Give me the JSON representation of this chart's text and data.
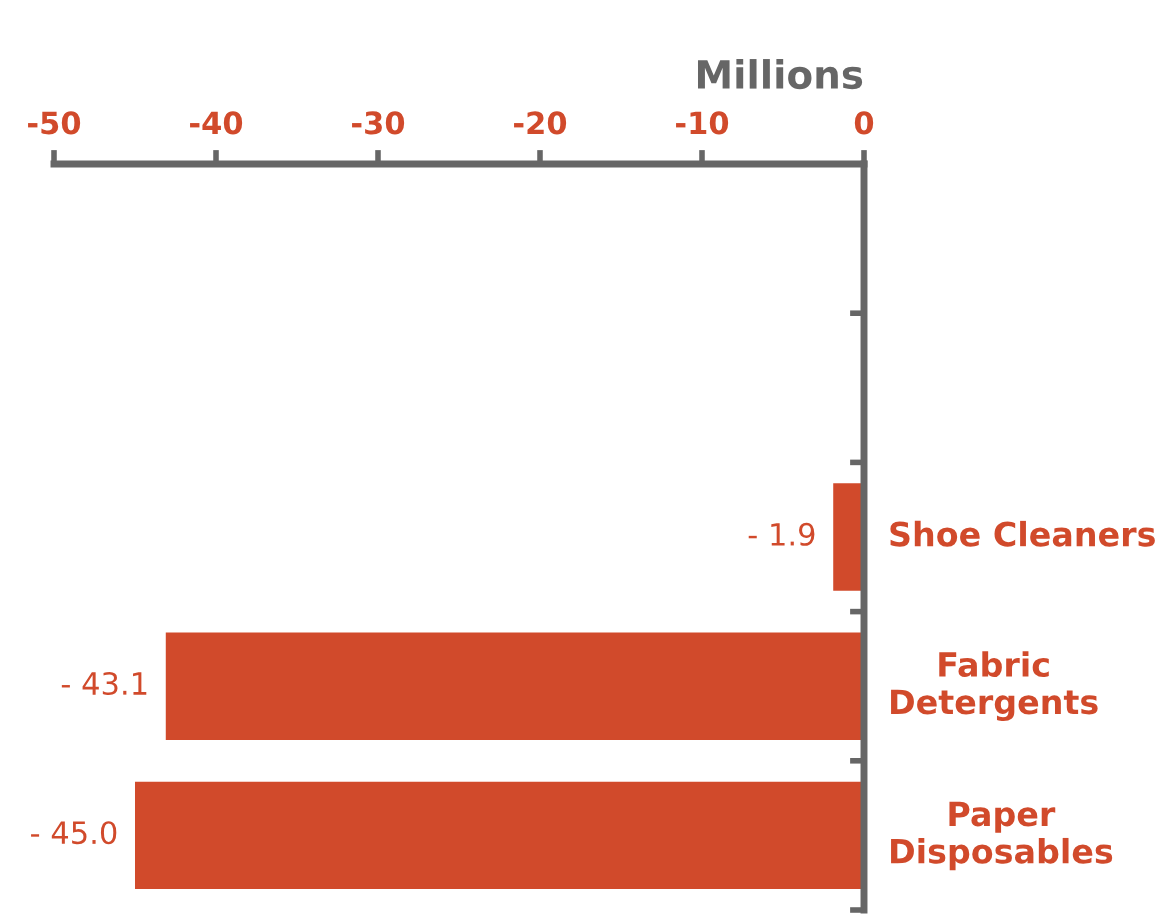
{
  "chart_data": {
    "type": "bar",
    "orientation": "horizontal",
    "xlabel": "Millions",
    "categories": [
      null,
      null,
      "Shoe Cleaners",
      "Fabric Detergents",
      "Paper Disposables"
    ],
    "values": [
      null,
      null,
      -1.9,
      -43.1,
      -45.0
    ],
    "value_labels": [
      null,
      null,
      "- 1.9",
      "- 43.1",
      "- 45.0"
    ],
    "color": "#d14a2b",
    "xlim": [
      -50,
      0
    ],
    "xticks": [
      -50,
      -40,
      -30,
      -20,
      -10,
      0
    ],
    "grid": false,
    "legend": false
  }
}
